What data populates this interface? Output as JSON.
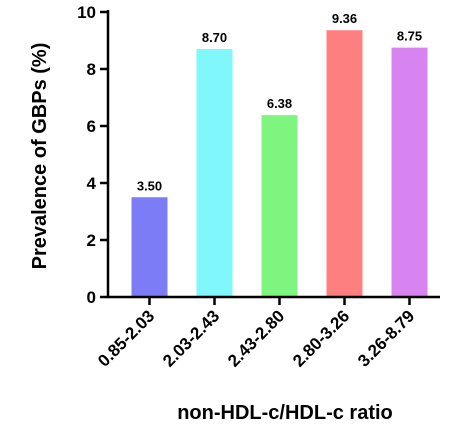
{
  "chart_data": {
    "type": "bar",
    "categories": [
      "0.85-2.03",
      "2.03-2.43",
      "2.43-2.80",
      "2.80-3.26",
      "3.26-8.79"
    ],
    "values": [
      3.5,
      8.7,
      6.38,
      9.36,
      8.75
    ],
    "value_labels": [
      "3.50",
      "8.70",
      "6.38",
      "9.36",
      "8.75"
    ],
    "colors": [
      "#7b7cf6",
      "#7ff7fb",
      "#7ef57e",
      "#fd7f7f",
      "#d884f0"
    ],
    "xlabel": "non-HDL-c/HDL-c ratio",
    "ylabel": "Prevalence of GBPs (%)",
    "ylim": [
      0,
      10
    ],
    "yticks": [
      0,
      2,
      4,
      6,
      8,
      10
    ],
    "grid": false,
    "legend": "none"
  }
}
